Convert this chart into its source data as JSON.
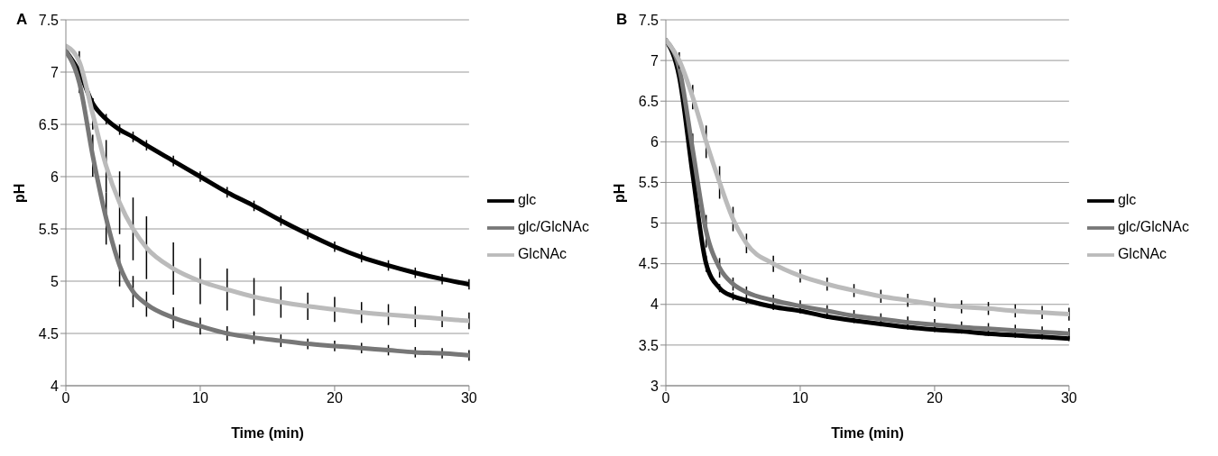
{
  "chart_data": [
    {
      "type": "line",
      "title": "A",
      "xlabel": "Time (min)",
      "ylabel": "pH",
      "x": [
        0,
        1,
        2,
        3,
        4,
        5,
        6,
        8,
        10,
        12,
        14,
        16,
        18,
        20,
        22,
        24,
        26,
        28,
        30
      ],
      "xlim": [
        0,
        30
      ],
      "xticks": [
        0,
        10,
        20,
        30
      ],
      "ylim": [
        4,
        7.5
      ],
      "yticks": [
        4,
        4.5,
        5,
        5.5,
        6,
        6.5,
        7,
        7.5
      ],
      "grid": "y",
      "legend": "right",
      "marker": "none",
      "line_style": "solid",
      "series": [
        {
          "name": "glc",
          "color": "#000000",
          "values": [
            7.2,
            7.0,
            6.7,
            6.55,
            6.45,
            6.38,
            6.3,
            6.15,
            6.0,
            5.85,
            5.72,
            5.58,
            5.45,
            5.33,
            5.23,
            5.15,
            5.08,
            5.02,
            4.97
          ],
          "errors": [
            null,
            0.03,
            0.05,
            0.05,
            0.05,
            0.05,
            0.05,
            0.05,
            0.05,
            0.05,
            0.05,
            0.05,
            0.05,
            0.05,
            0.05,
            0.05,
            0.05,
            0.05,
            0.05
          ]
        },
        {
          "name": "glc/GlcNAc",
          "color": "#777777",
          "values": [
            7.2,
            6.9,
            6.2,
            5.6,
            5.15,
            4.9,
            4.78,
            4.65,
            4.57,
            4.5,
            4.46,
            4.43,
            4.4,
            4.38,
            4.36,
            4.34,
            4.32,
            4.31,
            4.29
          ],
          "errors": [
            null,
            0.1,
            0.2,
            0.25,
            0.2,
            0.15,
            0.12,
            0.1,
            0.08,
            0.07,
            0.06,
            0.06,
            0.05,
            0.05,
            0.05,
            0.05,
            0.05,
            0.05,
            0.05
          ]
        },
        {
          "name": "GlcNAc",
          "color": "#bbbbbb",
          "values": [
            7.25,
            7.1,
            6.6,
            6.1,
            5.75,
            5.5,
            5.32,
            5.12,
            5.0,
            4.92,
            4.85,
            4.8,
            4.76,
            4.73,
            4.7,
            4.68,
            4.66,
            4.64,
            4.62
          ],
          "errors": [
            null,
            0.1,
            0.15,
            0.25,
            0.3,
            0.3,
            0.3,
            0.25,
            0.22,
            0.2,
            0.18,
            0.15,
            0.13,
            0.12,
            0.1,
            0.1,
            0.1,
            0.08,
            0.08
          ]
        }
      ]
    },
    {
      "type": "line",
      "title": "B",
      "xlabel": "Time (min)",
      "ylabel": "pH",
      "x": [
        0,
        1,
        2,
        3,
        4,
        5,
        6,
        8,
        10,
        12,
        14,
        16,
        18,
        20,
        22,
        24,
        26,
        28,
        30
      ],
      "xlim": [
        0,
        30
      ],
      "xticks": [
        0,
        10,
        20,
        30
      ],
      "ylim": [
        3,
        7.5
      ],
      "yticks": [
        3,
        3.5,
        4,
        4.5,
        5,
        5.5,
        6,
        6.5,
        7,
        7.5
      ],
      "grid": "y",
      "legend": "right",
      "marker": "none",
      "line_style": "solid",
      "series": [
        {
          "name": "glc",
          "color": "#000000",
          "values": [
            7.25,
            6.8,
            5.6,
            4.5,
            4.2,
            4.1,
            4.05,
            3.97,
            3.92,
            3.85,
            3.8,
            3.76,
            3.72,
            3.69,
            3.67,
            3.64,
            3.62,
            3.6,
            3.58
          ],
          "errors": [
            null,
            0.05,
            0.1,
            0.1,
            0.05,
            0.05,
            0.04,
            0.04,
            0.03,
            0.03,
            0.03,
            0.03,
            0.03,
            0.03,
            0.03,
            0.03,
            0.03,
            0.03,
            0.03
          ]
        },
        {
          "name": "glc/GlcNAc",
          "color": "#777777",
          "values": [
            7.25,
            6.9,
            5.9,
            4.9,
            4.45,
            4.25,
            4.15,
            4.05,
            3.98,
            3.92,
            3.86,
            3.82,
            3.78,
            3.75,
            3.72,
            3.7,
            3.68,
            3.66,
            3.64
          ],
          "errors": [
            null,
            0.1,
            0.2,
            0.2,
            0.12,
            0.08,
            0.07,
            0.07,
            0.07,
            0.07,
            0.07,
            0.07,
            0.07,
            0.07,
            0.07,
            0.07,
            0.07,
            0.07,
            0.07
          ]
        },
        {
          "name": "GlcNAc",
          "color": "#bbbbbb",
          "values": [
            7.25,
            7.0,
            6.55,
            6.0,
            5.5,
            5.05,
            4.75,
            4.5,
            4.35,
            4.25,
            4.17,
            4.1,
            4.05,
            4.0,
            3.97,
            3.95,
            3.92,
            3.9,
            3.88
          ],
          "errors": [
            null,
            0.1,
            0.15,
            0.2,
            0.2,
            0.15,
            0.12,
            0.1,
            0.08,
            0.08,
            0.08,
            0.08,
            0.08,
            0.08,
            0.08,
            0.08,
            0.08,
            0.08,
            0.08
          ]
        }
      ]
    }
  ]
}
